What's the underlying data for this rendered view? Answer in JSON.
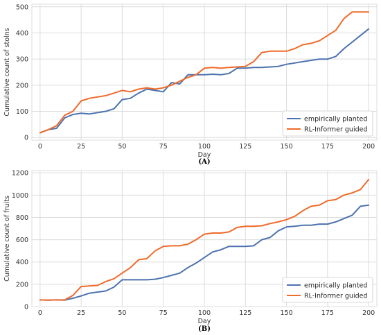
{
  "colors": {
    "series_1": "#4c72b0",
    "series_2": "#f06a2a",
    "grid": "#dcdcdc",
    "panel_bg": "#eaeaf2"
  },
  "chart_data": [
    {
      "type": "line",
      "caption": "(A)",
      "xlabel": "Day",
      "ylabel": "Cumulative count of stolns",
      "xlim": [
        -5,
        205
      ],
      "ylim": [
        -10,
        510
      ],
      "xticks": [
        0,
        25,
        50,
        75,
        100,
        125,
        150,
        175,
        200
      ],
      "yticks": [
        0,
        100,
        200,
        300,
        400,
        500
      ],
      "grid": true,
      "legend": "lower-right",
      "series": [
        {
          "name": "empirically planted",
          "x": [
            0,
            5,
            10,
            15,
            20,
            25,
            30,
            35,
            40,
            45,
            50,
            55,
            60,
            65,
            70,
            75,
            80,
            85,
            90,
            95,
            100,
            105,
            110,
            115,
            120,
            125,
            130,
            135,
            140,
            145,
            150,
            155,
            160,
            165,
            170,
            175,
            180,
            185,
            190,
            195,
            200
          ],
          "y": [
            18,
            30,
            35,
            75,
            88,
            93,
            90,
            95,
            100,
            110,
            145,
            150,
            170,
            185,
            180,
            175,
            210,
            205,
            240,
            240,
            240,
            242,
            240,
            245,
            265,
            265,
            268,
            268,
            270,
            272,
            280,
            285,
            290,
            295,
            300,
            300,
            310,
            340,
            365,
            390,
            415
          ]
        },
        {
          "name": "RL-Informer guided",
          "x": [
            0,
            5,
            10,
            15,
            20,
            25,
            30,
            35,
            40,
            45,
            50,
            55,
            60,
            65,
            70,
            75,
            80,
            85,
            90,
            95,
            100,
            105,
            110,
            115,
            120,
            125,
            130,
            135,
            140,
            145,
            150,
            155,
            160,
            165,
            170,
            175,
            180,
            185,
            190,
            195,
            200
          ],
          "y": [
            18,
            30,
            45,
            85,
            100,
            140,
            150,
            155,
            160,
            170,
            180,
            175,
            185,
            190,
            185,
            190,
            200,
            215,
            230,
            240,
            265,
            268,
            265,
            268,
            270,
            272,
            290,
            325,
            330,
            330,
            330,
            340,
            355,
            360,
            370,
            390,
            410,
            455,
            480,
            480,
            480
          ]
        }
      ]
    },
    {
      "type": "line",
      "caption": "(B)",
      "xlabel": "Day",
      "ylabel": "Cumulative count of fruits",
      "xlim": [
        -5,
        205
      ],
      "ylim": [
        0,
        1220
      ],
      "xticks": [
        0,
        25,
        50,
        75,
        100,
        125,
        150,
        175,
        200
      ],
      "yticks": [
        0,
        200,
        400,
        600,
        800,
        1000,
        1200
      ],
      "grid": true,
      "legend": "lower-right",
      "series": [
        {
          "name": "empirically planted",
          "x": [
            0,
            5,
            10,
            15,
            20,
            25,
            30,
            35,
            40,
            45,
            50,
            55,
            60,
            65,
            70,
            75,
            80,
            85,
            90,
            95,
            100,
            105,
            110,
            115,
            120,
            125,
            130,
            135,
            140,
            145,
            150,
            155,
            160,
            165,
            170,
            175,
            180,
            185,
            190,
            195,
            200
          ],
          "y": [
            60,
            58,
            60,
            58,
            75,
            95,
            120,
            130,
            140,
            175,
            240,
            240,
            240,
            240,
            245,
            260,
            280,
            300,
            350,
            390,
            440,
            490,
            510,
            540,
            540,
            540,
            545,
            600,
            620,
            680,
            715,
            720,
            730,
            730,
            740,
            740,
            760,
            790,
            820,
            900,
            910
          ]
        },
        {
          "name": "RL-Informer guided",
          "x": [
            0,
            5,
            10,
            15,
            20,
            25,
            30,
            35,
            40,
            45,
            50,
            55,
            60,
            65,
            70,
            75,
            80,
            85,
            90,
            95,
            100,
            105,
            110,
            115,
            120,
            125,
            130,
            135,
            140,
            145,
            150,
            155,
            160,
            165,
            170,
            175,
            180,
            185,
            190,
            195,
            200
          ],
          "y": [
            60,
            58,
            60,
            60,
            100,
            180,
            185,
            190,
            225,
            250,
            300,
            350,
            420,
            430,
            500,
            540,
            545,
            545,
            560,
            600,
            650,
            660,
            660,
            670,
            710,
            720,
            720,
            725,
            745,
            760,
            780,
            810,
            860,
            900,
            910,
            950,
            960,
            1000,
            1020,
            1050,
            1140
          ]
        }
      ]
    }
  ]
}
